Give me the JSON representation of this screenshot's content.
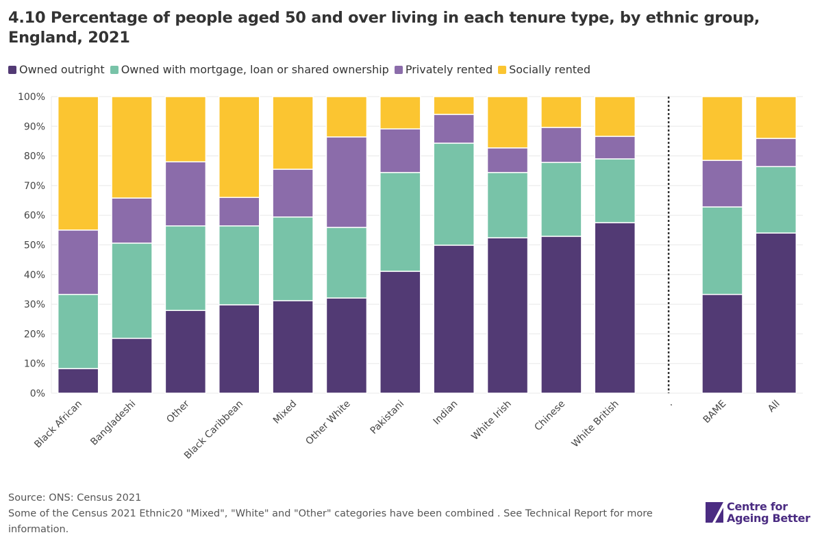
{
  "title": "4.10 Percentage of people aged 50 and over living in each tenure type, by ethnic group, England, 2021",
  "chart_data": {
    "type": "bar",
    "stacked": true,
    "categories": [
      "Black African",
      "Bangladeshi",
      "Other",
      "Black Caribbean",
      "Mixed",
      "Other White",
      "Pakistani",
      "Indian",
      "White Irish",
      "Chinese",
      "White British",
      ".",
      "BAME",
      "All"
    ],
    "series": [
      {
        "name": "Owned outright",
        "color": "#523a74",
        "values": [
          8.3,
          18.5,
          27.9,
          29.8,
          31.2,
          32.1,
          41.1,
          49.9,
          52.4,
          52.9,
          57.5,
          null,
          33.3,
          54.0
        ]
      },
      {
        "name": "Owned with mortgage, loan or shared ownership",
        "color": "#78c3a8",
        "values": [
          25.0,
          32.1,
          28.5,
          26.6,
          28.2,
          23.8,
          33.3,
          34.4,
          22.0,
          24.9,
          21.5,
          null,
          29.5,
          22.4
        ]
      },
      {
        "name": "Privately rented",
        "color": "#8b6caa",
        "values": [
          21.7,
          15.2,
          21.6,
          9.6,
          16.1,
          30.5,
          14.7,
          9.7,
          8.3,
          11.8,
          7.6,
          null,
          15.7,
          9.5
        ]
      },
      {
        "name": "Socially rented",
        "color": "#fbc531",
        "values": [
          45.0,
          34.2,
          22.0,
          34.0,
          24.5,
          13.6,
          10.9,
          6.0,
          17.3,
          10.4,
          13.4,
          null,
          21.5,
          14.1
        ]
      }
    ],
    "yticks": [
      "0%",
      "10%",
      "20%",
      "30%",
      "40%",
      "50%",
      "60%",
      "70%",
      "80%",
      "90%",
      "100%"
    ],
    "ylim": [
      0,
      100
    ],
    "grid": true,
    "legend_position": "top-left",
    "separator_after": "White British"
  },
  "footer": {
    "source": "Source: ONS: Census 2021",
    "note": "Some of the Census 2021 Ethnic20 \"Mixed\", \"White\" and \"Other\" categories have been combined . See Technical Report for more information."
  },
  "logo": {
    "line1": "Centre for",
    "line2": "Ageing Better"
  }
}
